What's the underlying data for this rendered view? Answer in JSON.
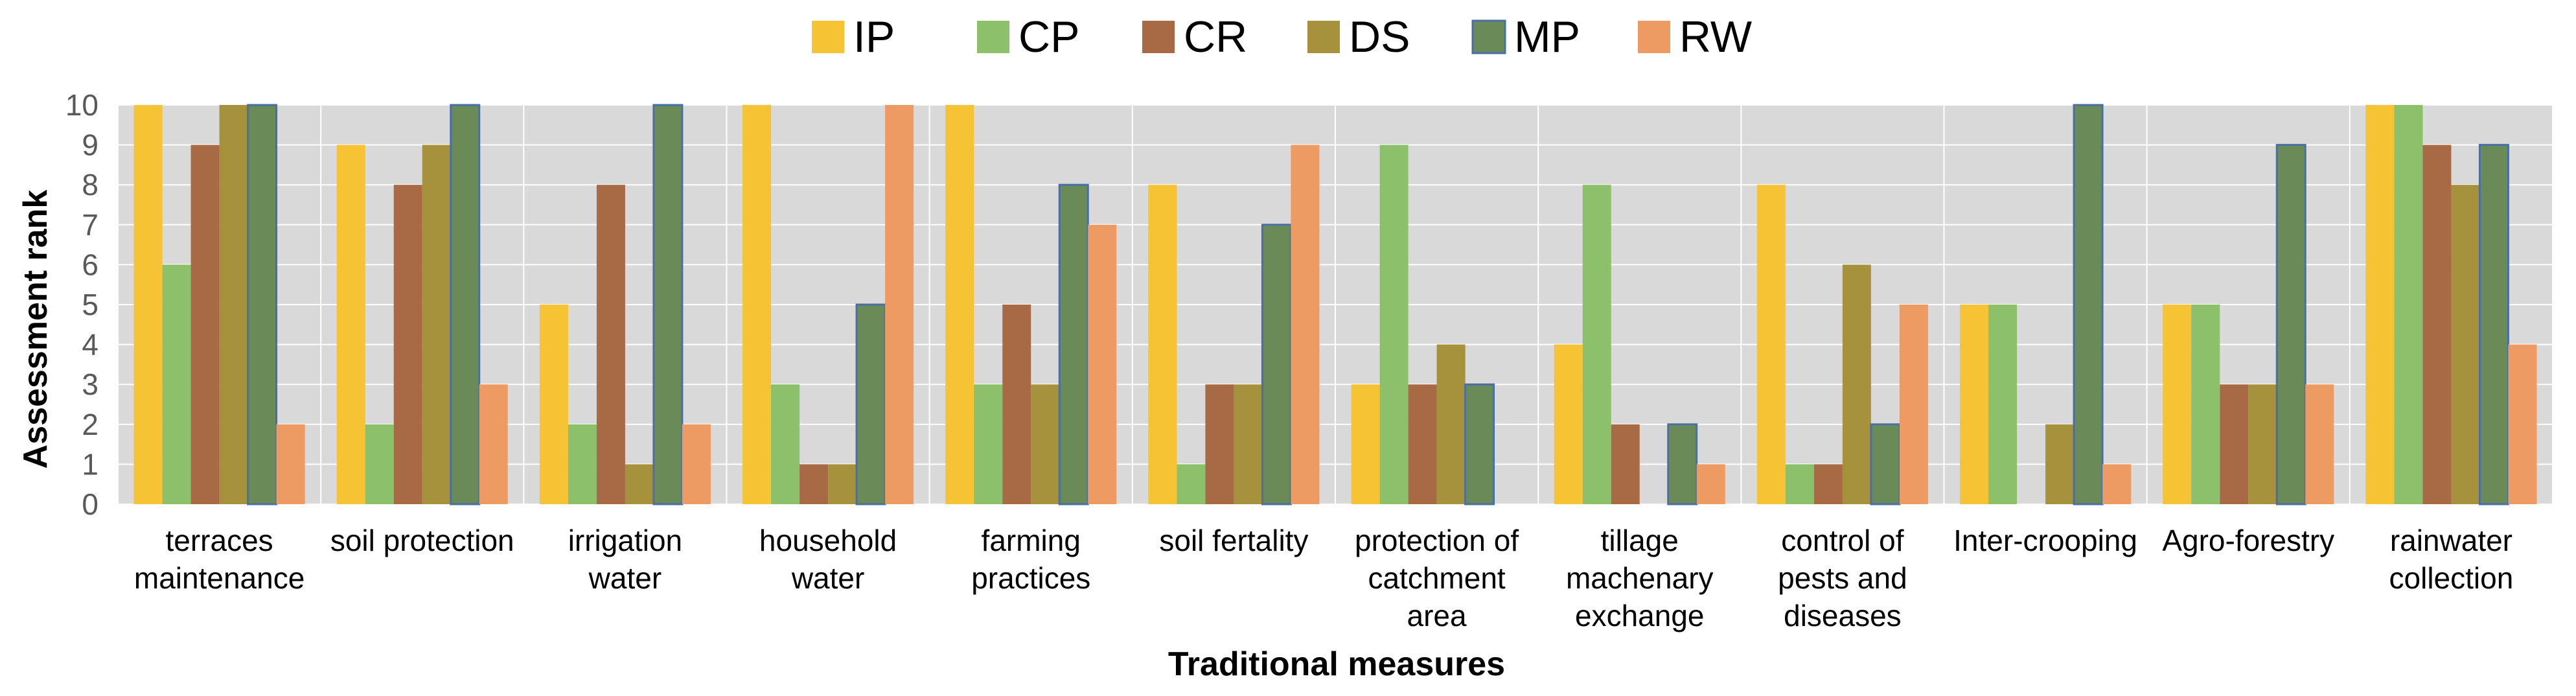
{
  "chart_data": {
    "type": "bar",
    "xlabel": "Traditional measures",
    "ylabel": "Assessment rank",
    "ylim": [
      0,
      10
    ],
    "yticks": [
      0,
      1,
      2,
      3,
      4,
      5,
      6,
      7,
      8,
      9,
      10
    ],
    "grid": true,
    "legend_position": "top-center",
    "categories": [
      [
        "terraces",
        "maintenance"
      ],
      [
        "soil protection"
      ],
      [
        "irrigation",
        "water"
      ],
      [
        "household",
        "water"
      ],
      [
        "farming",
        "practices"
      ],
      [
        "soil fertality"
      ],
      [
        "protection of",
        "catchment",
        "area"
      ],
      [
        "tillage",
        "machenary",
        "exchange"
      ],
      [
        "control of",
        "pests and",
        "diseases"
      ],
      [
        "Inter-crooping"
      ],
      [
        "Agro-forestry"
      ],
      [
        "rainwater",
        "collection"
      ]
    ],
    "series": [
      {
        "name": "IP",
        "color": "#F5C333",
        "values": [
          10,
          9,
          5,
          10,
          10,
          8,
          3,
          4,
          8,
          5,
          5,
          10
        ]
      },
      {
        "name": "CP",
        "color": "#8CC06B",
        "values": [
          6,
          2,
          2,
          3,
          3,
          1,
          9,
          8,
          1,
          5,
          5,
          10
        ]
      },
      {
        "name": "CR",
        "color": "#A86A45",
        "values": [
          9,
          8,
          8,
          1,
          5,
          3,
          3,
          2,
          1,
          0,
          3,
          9
        ]
      },
      {
        "name": "DS",
        "color": "#A6913C",
        "values": [
          10,
          9,
          1,
          1,
          3,
          3,
          4,
          0,
          6,
          2,
          3,
          8
        ]
      },
      {
        "name": "MP",
        "color": "#6A8A58",
        "values": [
          10,
          10,
          10,
          5,
          8,
          7,
          3,
          2,
          2,
          10,
          9,
          9
        ]
      },
      {
        "name": "RW",
        "color": "#ED9B63",
        "values": [
          2,
          3,
          2,
          10,
          7,
          9,
          0,
          1,
          5,
          1,
          3,
          4
        ]
      }
    ]
  }
}
